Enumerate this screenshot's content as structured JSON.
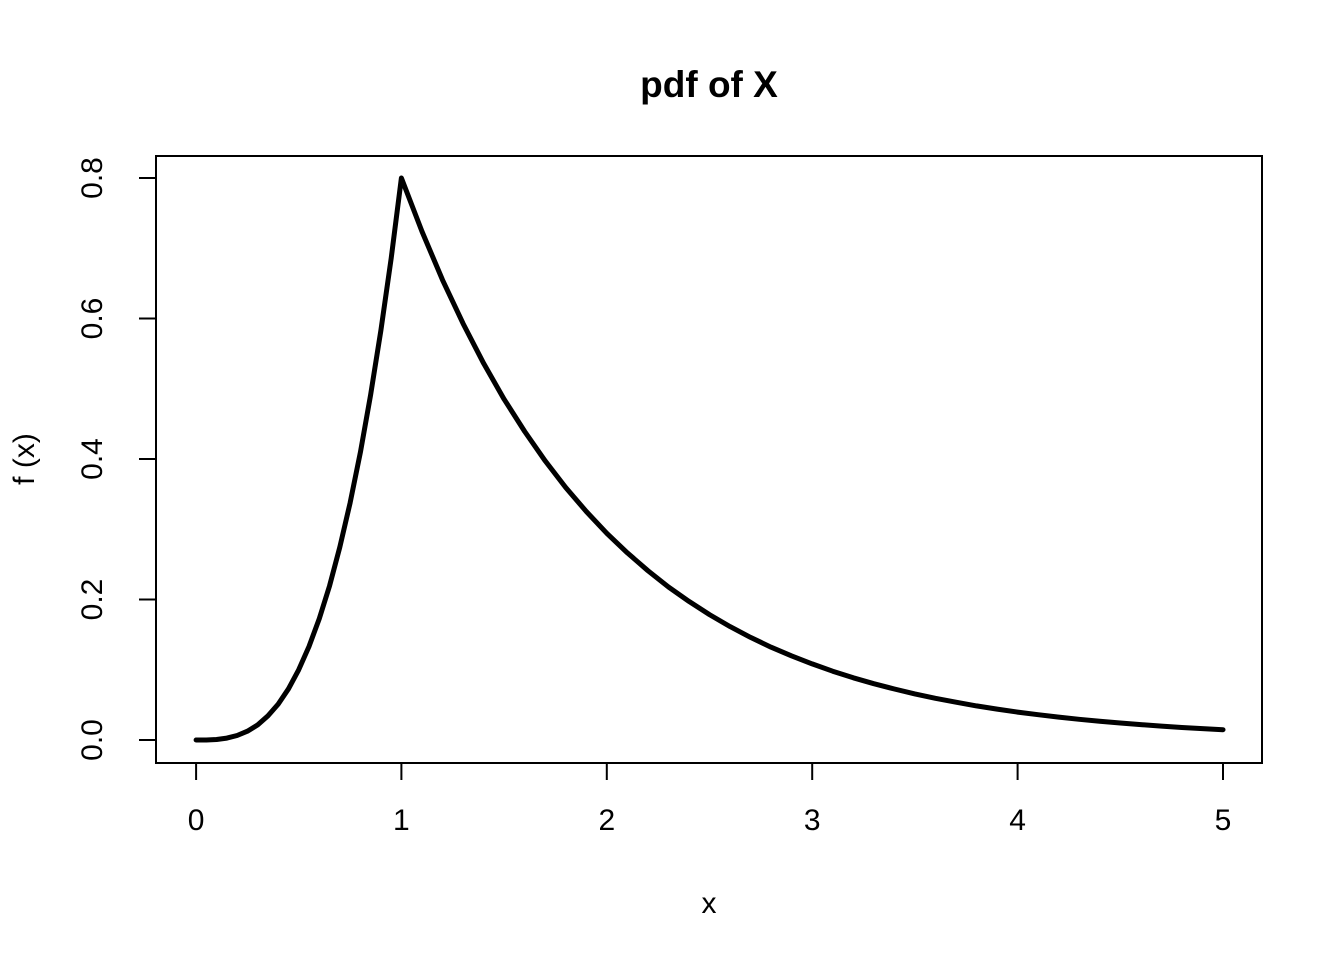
{
  "figure": {
    "background_color": "#ffffff",
    "foreground_color": "#000000"
  },
  "chart_data": {
    "type": "line",
    "title": "pdf of X",
    "xlabel": "x",
    "ylabel": "f (x)",
    "xlim": [
      0,
      5
    ],
    "ylim": [
      0,
      0.8
    ],
    "x_ticks": [
      0,
      1,
      2,
      3,
      4,
      5
    ],
    "x_tick_labels": [
      "0",
      "1",
      "2",
      "3",
      "4",
      "5"
    ],
    "y_ticks": [
      0.0,
      0.2,
      0.4,
      0.6,
      0.8
    ],
    "y_tick_labels": [
      "0.0",
      "0.2",
      "0.4",
      "0.6",
      "0.8"
    ],
    "grid": false,
    "legend": "none",
    "series": [
      {
        "name": "f(x)",
        "color": "#000000",
        "line_width": 2,
        "peak": [
          1.0,
          0.8
        ],
        "points": [
          [
            0.0,
            0.0
          ],
          [
            0.05,
            0.0001
          ],
          [
            0.1,
            0.0008
          ],
          [
            0.15,
            0.0027
          ],
          [
            0.2,
            0.0064
          ],
          [
            0.25,
            0.0125
          ],
          [
            0.3,
            0.0216
          ],
          [
            0.35,
            0.0343
          ],
          [
            0.4,
            0.0512
          ],
          [
            0.45,
            0.0729
          ],
          [
            0.5,
            0.1
          ],
          [
            0.55,
            0.1331
          ],
          [
            0.6,
            0.1728
          ],
          [
            0.65,
            0.2197
          ],
          [
            0.7,
            0.2744
          ],
          [
            0.75,
            0.3375
          ],
          [
            0.8,
            0.4096
          ],
          [
            0.85,
            0.4913
          ],
          [
            0.9,
            0.5832
          ],
          [
            0.95,
            0.6859
          ],
          [
            1.0,
            0.8
          ],
          [
            1.1,
            0.7239
          ],
          [
            1.2,
            0.655
          ],
          [
            1.3,
            0.5927
          ],
          [
            1.4,
            0.5362
          ],
          [
            1.5,
            0.4852
          ],
          [
            1.6,
            0.4391
          ],
          [
            1.7,
            0.3973
          ],
          [
            1.8,
            0.3595
          ],
          [
            1.9,
            0.3253
          ],
          [
            2.0,
            0.2943
          ],
          [
            2.1,
            0.2663
          ],
          [
            2.2,
            0.241
          ],
          [
            2.3,
            0.218
          ],
          [
            2.4,
            0.1973
          ],
          [
            2.5,
            0.1785
          ],
          [
            2.6,
            0.1615
          ],
          [
            2.7,
            0.1461
          ],
          [
            2.8,
            0.1322
          ],
          [
            2.9,
            0.1197
          ],
          [
            3.0,
            0.1083
          ],
          [
            3.1,
            0.098
          ],
          [
            3.2,
            0.0886
          ],
          [
            3.3,
            0.0802
          ],
          [
            3.4,
            0.0726
          ],
          [
            3.5,
            0.0657
          ],
          [
            3.6,
            0.0594
          ],
          [
            3.7,
            0.0538
          ],
          [
            3.8,
            0.0486
          ],
          [
            3.9,
            0.044
          ],
          [
            4.0,
            0.0398
          ],
          [
            4.1,
            0.036
          ],
          [
            4.2,
            0.0326
          ],
          [
            4.3,
            0.0295
          ],
          [
            4.4,
            0.0267
          ],
          [
            4.5,
            0.0242
          ],
          [
            4.6,
            0.0219
          ],
          [
            4.7,
            0.0198
          ],
          [
            4.8,
            0.0179
          ],
          [
            4.9,
            0.0162
          ],
          [
            5.0,
            0.0147
          ]
        ]
      }
    ]
  }
}
